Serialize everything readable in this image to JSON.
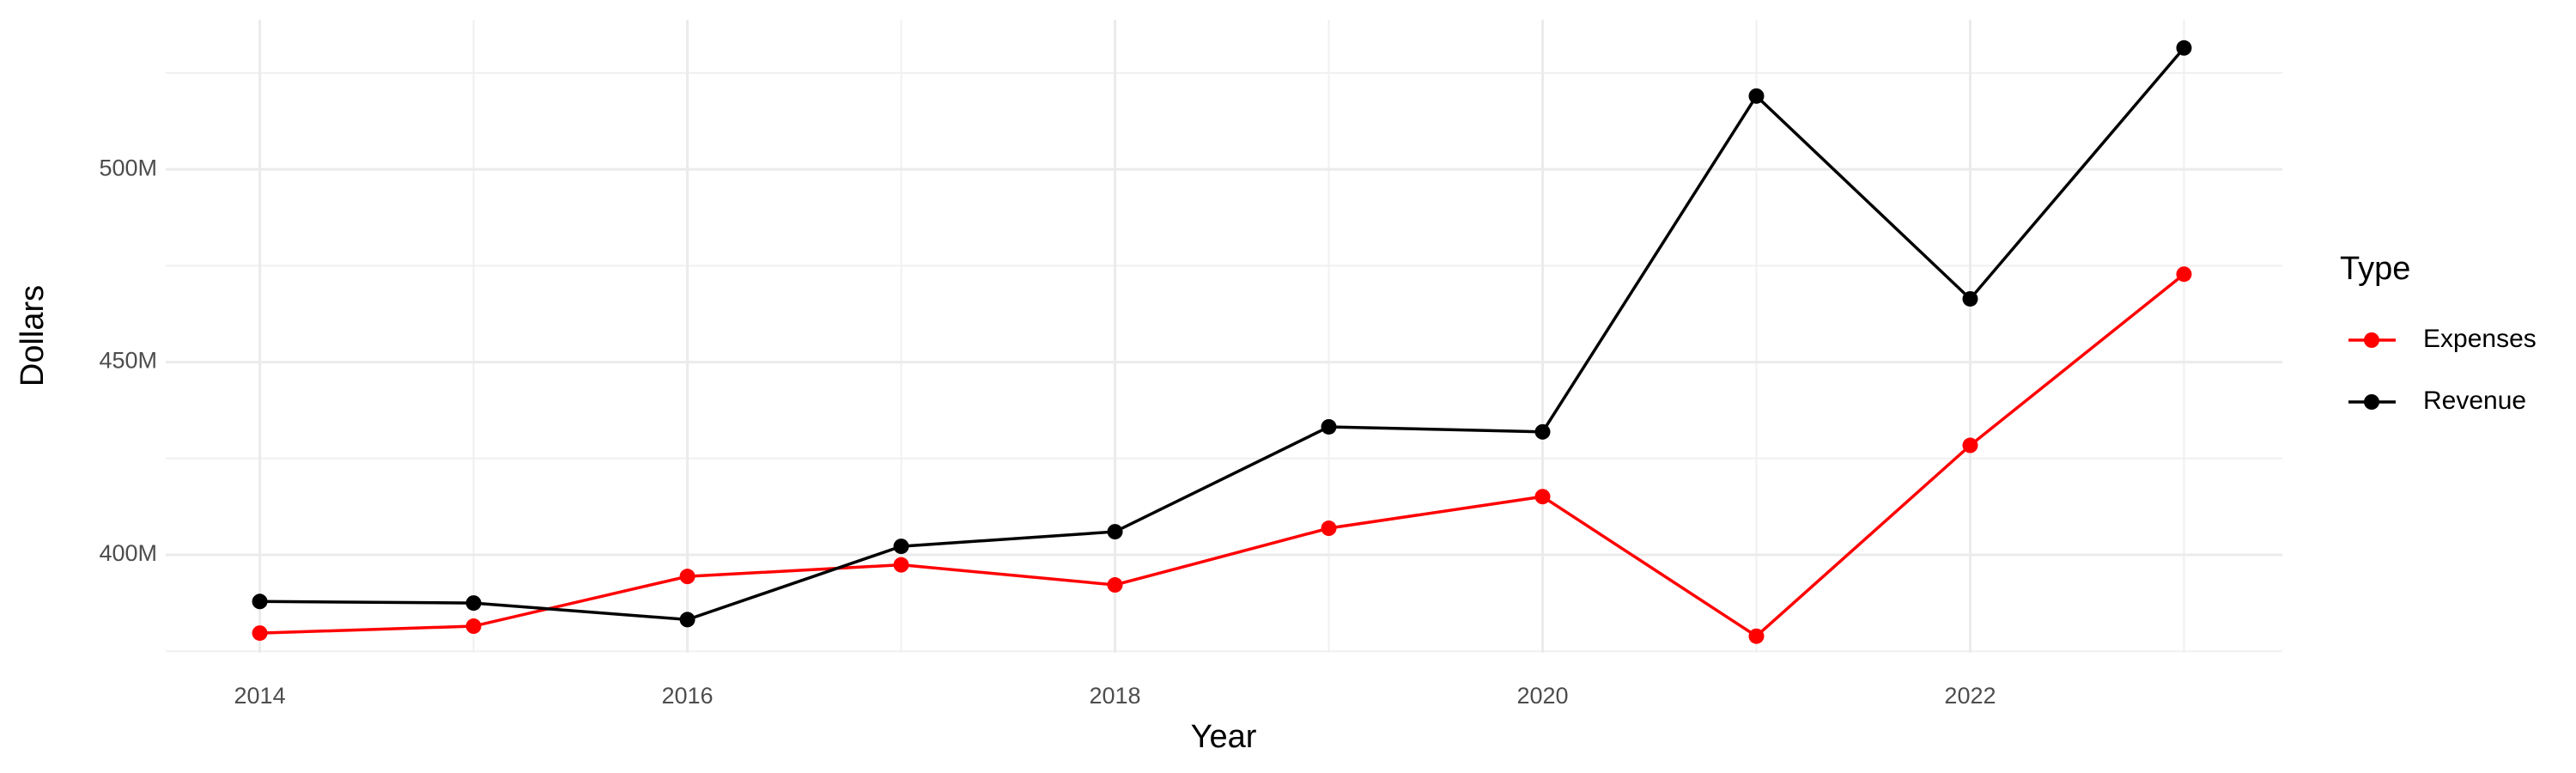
{
  "chart_data": {
    "type": "line",
    "x_label": "Year",
    "y_label": "Dollars",
    "legend_title": "Type",
    "x": [
      2014,
      2015,
      2016,
      2017,
      2018,
      2019,
      2020,
      2021,
      2022,
      2023
    ],
    "series": [
      {
        "name": "Expenses",
        "color": "#ff0000",
        "values": [
          379700000,
          381500000,
          394400000,
          397400000,
          392200000,
          406900000,
          415100000,
          378900000,
          428400000,
          472800000
        ]
      },
      {
        "name": "Revenue",
        "color": "#000000",
        "values": [
          387900000,
          387500000,
          383200000,
          402200000,
          406000000,
          433200000,
          431900000,
          519000000,
          466400000,
          531500000
        ]
      }
    ],
    "xlim": [
      2013.56,
      2023.46
    ],
    "xticks": [
      2014,
      2016,
      2018,
      2020,
      2022
    ],
    "ylim": [
      374600000,
      538800000
    ],
    "yticks": [
      {
        "value": 400000000,
        "label": "400M"
      },
      {
        "value": 450000000,
        "label": "450M"
      },
      {
        "value": 500000000,
        "label": "500M"
      }
    ],
    "grid": true,
    "legend": "right"
  }
}
